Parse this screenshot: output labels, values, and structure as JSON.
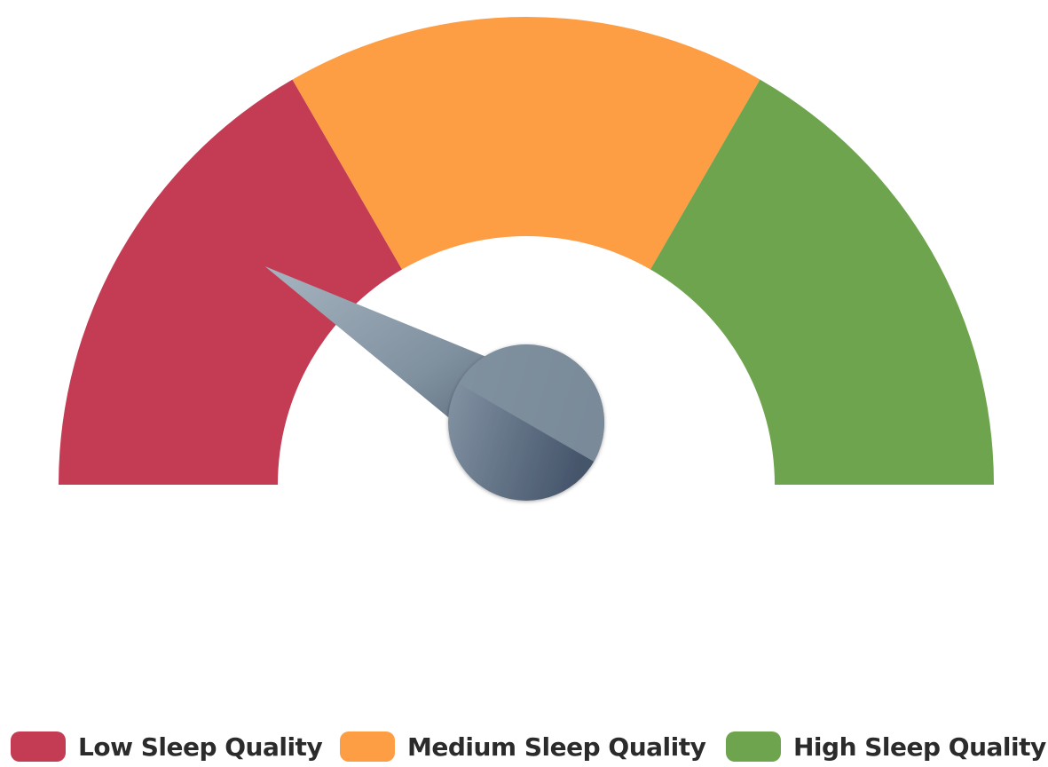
{
  "chart_data": {
    "type": "gauge",
    "title": "",
    "min": 0,
    "max": 3,
    "value": 0.5,
    "bands": [
      {
        "name": "Low Sleep Quality",
        "from": 0,
        "to": 1,
        "color": "#c43b54"
      },
      {
        "name": "Medium Sleep Quality",
        "from": 1,
        "to": 2,
        "color": "#fd9d44"
      },
      {
        "name": "High Sleep Quality",
        "from": 2,
        "to": 3,
        "color": "#6ea44d"
      }
    ],
    "needle_color": "#7a8b9a",
    "legend": {
      "position": "bottom",
      "items": [
        {
          "label": "Low Sleep Quality",
          "color": "#c43b54"
        },
        {
          "label": "Medium Sleep Quality",
          "color": "#fd9d44"
        },
        {
          "label": "High Sleep Quality",
          "color": "#6ea44d"
        }
      ]
    }
  }
}
